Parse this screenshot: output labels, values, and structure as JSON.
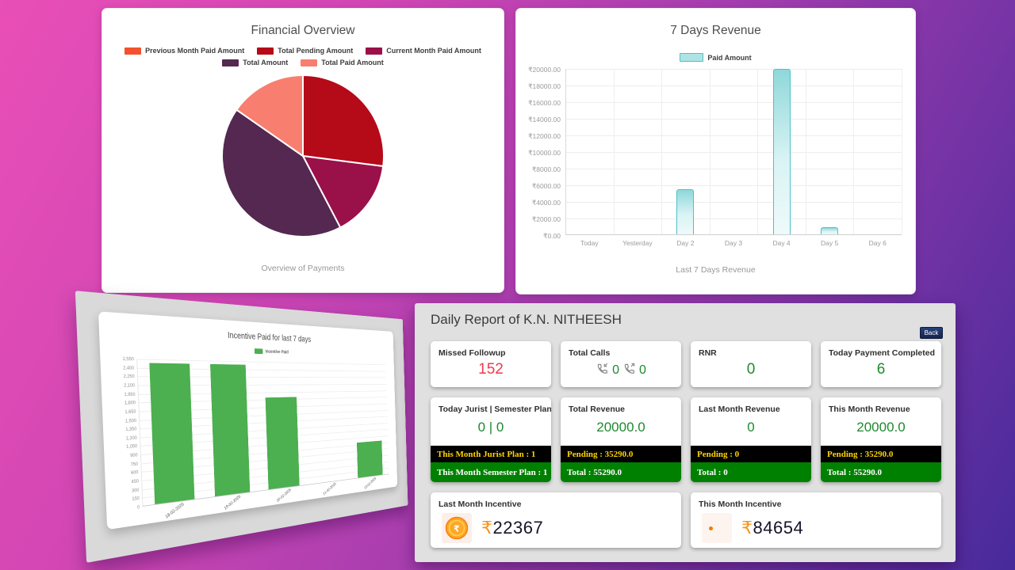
{
  "app": {
    "background_top_left": "#e94fb6",
    "background_bottom_right": "#472a9b"
  },
  "colors": {
    "missed_red": "#ee3c4e",
    "stat_green": "#1d8a2d",
    "banner_black_bg": "#000000",
    "banner_black_text": "#ffd400",
    "banner_green_bg": "#008000",
    "banner_green_text": "#ffffff",
    "back_button_bg": "#1c2e5e",
    "rupee_orange": "#f5941f",
    "teal_bar_border": "#4cc2c7",
    "incentive_bar_green": "#4caf50"
  },
  "chart_data": [
    {
      "id": "financial-overview-pie",
      "type": "pie",
      "title": "Financial Overview",
      "caption": "Overview of Payments",
      "labels": [
        "Previous Month Paid Amount",
        "Total Pending Amount",
        "Current Month Paid Amount",
        "Total Amount",
        "Total Paid Amount"
      ],
      "values": [
        0,
        35290,
        20000,
        55290,
        20000
      ],
      "colors": [
        "#f4512e",
        "#b50a18",
        "#9a1048",
        "#542850",
        "#f87e70"
      ],
      "legend_position": "top"
    },
    {
      "id": "seven-days-revenue",
      "type": "bar",
      "title": "7 Days Revenue",
      "caption": "Last 7 Days Revenue",
      "series": [
        {
          "name": "Paid Amount",
          "values": [
            0,
            0,
            5400,
            0,
            19900,
            900,
            0
          ]
        }
      ],
      "categories": [
        "Today",
        "Yesterday",
        "Day 2",
        "Day 3",
        "Day 4",
        "Day 5",
        "Day 6"
      ],
      "ylim": [
        0,
        20000
      ],
      "ytick_step": 2000,
      "ytick_prefix": "₹",
      "ytick_suffix": ".00",
      "grid": true,
      "legend_position": "top",
      "bar_fill": "#d9f3f4",
      "bar_border": "#4cc2c7"
    },
    {
      "id": "incentive-last-7-days",
      "type": "bar",
      "title": "Incentive Paid for last 7 days",
      "series": [
        {
          "name": "Incentive Paid",
          "values": [
            2470,
            2470,
            1830,
            0,
            790
          ]
        }
      ],
      "categories": [
        "18-02-2025",
        "19-02-2025",
        "20-02-2025",
        "21-02-2025",
        "22-02-2025"
      ],
      "ylim": [
        0,
        2550
      ],
      "ytick_step": 150,
      "grid": true,
      "legend_position": "top",
      "bar_fill": "#4caf50"
    }
  ],
  "daily_report": {
    "title": "Daily Report of K.N. NITHEESH",
    "back_label": "Back",
    "missed_followup": {
      "title": "Missed Followup",
      "value": "152"
    },
    "total_calls": {
      "title": "Total Calls",
      "incoming": "0",
      "outgoing": "0"
    },
    "rnr": {
      "title": "RNR",
      "value": "0"
    },
    "today_payment": {
      "title": "Today Payment Completed",
      "value": "6"
    },
    "jurist": {
      "title": "Today Jurist | Semester Plan",
      "value": "0 | 0",
      "banner_black": "This Month Jurist Plan : 1",
      "banner_green": "This Month Semester Plan : 1"
    },
    "total_revenue": {
      "title": "Total Revenue",
      "value": "20000.0",
      "banner_black": "Pending : 35290.0",
      "banner_green": "Total : 55290.0"
    },
    "last_month_revenue": {
      "title": "Last Month Revenue",
      "value": "0",
      "banner_black": "Pending : 0",
      "banner_green": "Total : 0"
    },
    "this_month_revenue": {
      "title": "This Month Revenue",
      "value": "20000.0",
      "banner_black": "Pending : 35290.0",
      "banner_green": "Total : 55290.0"
    },
    "last_month_incentive": {
      "title": "Last Month Incentive",
      "currency": "₹",
      "amount": "22367"
    },
    "this_month_incentive": {
      "title": "This Month Incentive",
      "currency": "₹",
      "amount": "84654"
    }
  }
}
